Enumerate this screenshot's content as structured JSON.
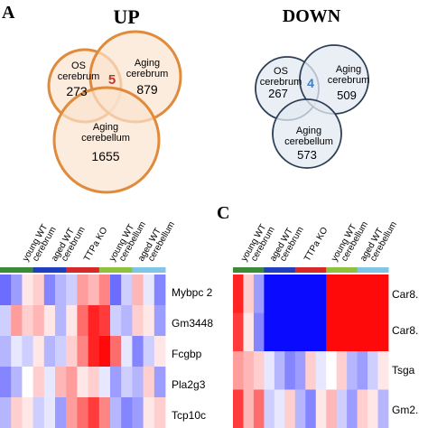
{
  "panel_labels": {
    "a": "A",
    "c": "C"
  },
  "up": {
    "title": "UP",
    "circle_a": {
      "name_line1": "OS",
      "name_line2": "cerebrum",
      "count": "273"
    },
    "circle_b": {
      "name_line1": "Aging",
      "name_line2": "cerebrum",
      "count": "879"
    },
    "circle_c": {
      "name_line1": "Aging",
      "name_line2": "cerebellum",
      "count": "1655"
    },
    "overlap": "5",
    "colors": {
      "stroke": "#e08a3c",
      "fill": "#fbe4cf",
      "overlap_text": "#c0392b"
    }
  },
  "down": {
    "title": "DOWN",
    "circle_a": {
      "name_line1": "OS",
      "name_line2": "cerebrum",
      "count": "267"
    },
    "circle_b": {
      "name_line1": "Aging",
      "name_line2": "cerebrum",
      "count": "509"
    },
    "circle_c": {
      "name_line1": "Aging",
      "name_line2": "cerebellum",
      "count": "573"
    },
    "overlap": "4",
    "colors": {
      "stroke": "#2d3e57",
      "fill": "#e3e9f1",
      "overlap_text": "#3a7fc1"
    }
  },
  "heatmap_b": {
    "column_groups": [
      {
        "line1": "young WT",
        "line2": "cerebrum",
        "color": "#3a8a3a"
      },
      {
        "line1": "aged WT",
        "line2": "cerebrum",
        "color": "#1f3fbf"
      },
      {
        "line1": "TTPa KO",
        "line2": "",
        "color": "#d62a2a"
      },
      {
        "line1": "young WT",
        "line2": "cerebellum",
        "color": "#8fc23c"
      },
      {
        "line1": "aged WT",
        "line2": "cerebellum",
        "color": "#7fc6e6"
      }
    ],
    "rows": [
      "Mybpc 2",
      "Gm3448",
      "Fcgbp",
      "Pla2g3",
      "Tcp10c"
    ]
  },
  "heatmap_c": {
    "column_groups": [
      {
        "line1": "young WT",
        "line2": "cerebrum",
        "color": "#3a8a3a"
      },
      {
        "line1": "aged WT",
        "line2": "cerebrum",
        "color": "#1f3fbf"
      },
      {
        "line1": "TTPa KO",
        "line2": "",
        "color": "#d62a2a"
      },
      {
        "line1": "young WT",
        "line2": "cerebellum",
        "color": "#8fc23c"
      },
      {
        "line1": "aged WT",
        "line2": "cerebellum",
        "color": "#7fc6e6"
      }
    ],
    "rows": [
      "Car8.",
      "Car8.",
      "Tsga",
      "Gm2."
    ]
  }
}
